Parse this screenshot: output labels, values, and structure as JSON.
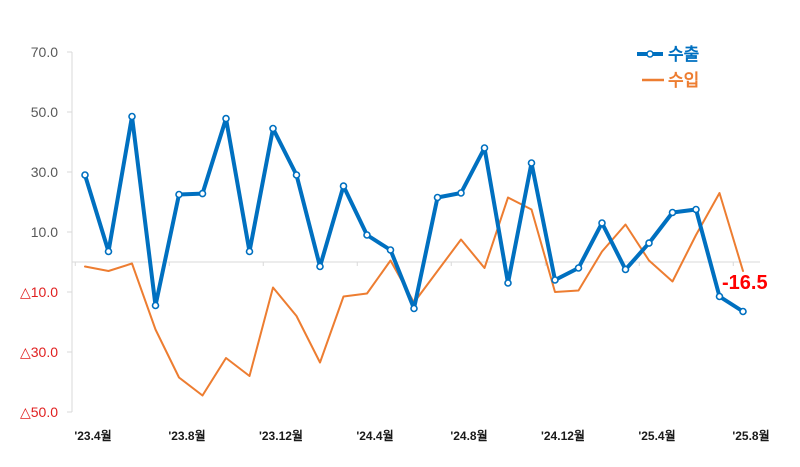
{
  "chart_data": {
    "type": "line",
    "ylim": [
      -50,
      70
    ],
    "y_ticks": [
      {
        "value": 70,
        "label": "70.0",
        "negative": false
      },
      {
        "value": 50,
        "label": "50.0",
        "negative": false
      },
      {
        "value": 30,
        "label": "30.0",
        "negative": false
      },
      {
        "value": 10,
        "label": "10.0",
        "negative": false
      },
      {
        "value": -10,
        "label": "△10.0",
        "negative": true
      },
      {
        "value": -30,
        "label": "△30.0",
        "negative": true
      },
      {
        "value": -50,
        "label": "△50.0",
        "negative": true
      }
    ],
    "x_tick_labels": [
      {
        "index": 0,
        "label": "'23.4월"
      },
      {
        "index": 4,
        "label": "'23.8월"
      },
      {
        "index": 8,
        "label": "'23.12월"
      },
      {
        "index": 12,
        "label": "'24.4월"
      },
      {
        "index": 16,
        "label": "'24.8월"
      },
      {
        "index": 20,
        "label": "'24.12월"
      },
      {
        "index": 24,
        "label": "'25.4월"
      },
      {
        "index": 28,
        "label": "'25.8월"
      }
    ],
    "x": [
      "'23.4",
      "'23.5",
      "'23.6",
      "'23.7",
      "'23.8",
      "'23.9",
      "'23.10",
      "'23.11",
      "'23.12",
      "'24.1",
      "'24.2",
      "'24.3",
      "'24.4",
      "'24.5",
      "'24.6",
      "'24.7",
      "'24.8",
      "'24.9",
      "'24.10",
      "'24.11",
      "'24.12",
      "'25.1",
      "'25.2",
      "'25.3",
      "'25.4",
      "'25.5",
      "'25.6",
      "'25.7",
      "'25.8"
    ],
    "series": [
      {
        "name": "수출",
        "color": "#0070c0",
        "markers": true,
        "values": [
          29.0,
          3.5,
          48.5,
          -14.5,
          22.5,
          22.8,
          47.8,
          3.5,
          44.5,
          29.0,
          -1.5,
          25.3,
          9.0,
          4.0,
          -15.5,
          21.5,
          23.0,
          38.0,
          -7.0,
          33.0,
          -6.0,
          -2.0,
          13.0,
          -2.5,
          6.3,
          16.5,
          17.5,
          -11.5,
          -16.5
        ]
      },
      {
        "name": "수입",
        "color": "#ed7d31",
        "markers": false,
        "values": [
          -1.5,
          -3.0,
          -0.5,
          -22.5,
          -38.5,
          -44.5,
          -32.0,
          -38.0,
          -8.5,
          -18.0,
          -33.5,
          -11.5,
          -10.5,
          0.5,
          -13.5,
          -3.0,
          7.5,
          -2.0,
          21.5,
          17.5,
          -10.0,
          -9.5,
          3.5,
          12.5,
          0.5,
          -6.5,
          9.0,
          23.0,
          -3.0
        ]
      }
    ],
    "annotation": {
      "text": "-16.5",
      "color": "#ff0000"
    },
    "legend": {
      "position": "top-right"
    },
    "colors": {
      "negative_tick": "#e02020",
      "positive_tick": "#595959",
      "axis": "#d9d9d9"
    }
  }
}
